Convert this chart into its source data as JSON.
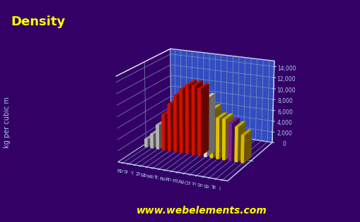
{
  "elements": [
    "Rb",
    "Sr",
    "Y",
    "Zr",
    "Nb",
    "Mo",
    "Tc",
    "Ru",
    "Rh",
    "Pd",
    "Ag",
    "Cd",
    "In",
    "Sn",
    "Sb",
    "Te",
    "I"
  ],
  "densities": [
    1530,
    2630,
    4472,
    6511,
    8570,
    10220,
    11500,
    12370,
    12410,
    12023,
    10490,
    8650,
    7310,
    7310,
    6697,
    6240,
    4940
  ],
  "bar_colors": [
    "#cccccc",
    "#cccccc",
    "#cccccc",
    "#ee1100",
    "#ee1100",
    "#ee1100",
    "#ee1100",
    "#ee1100",
    "#ee1100",
    "#ee1100",
    "#ffffff",
    "#ffdd00",
    "#ffdd00",
    "#ffdd00",
    "#9922bb",
    "#ffdd00",
    "#ffcc00"
  ],
  "title": "Density",
  "ylabel": "kg per cubic m",
  "yticks": [
    0,
    2000,
    4000,
    6000,
    8000,
    10000,
    12000,
    14000
  ],
  "ytick_labels": [
    "0",
    "2,000",
    "4,000",
    "6,000",
    "8,000",
    "10,000",
    "12,000",
    "14,000"
  ],
  "bg_color": "#330066",
  "title_color": "#ffff00",
  "axis_color": "#aaccee",
  "grid_color": "#7799bb",
  "floor_color": "#3355cc",
  "website": "www.webelements.com",
  "website_color": "#ffff00",
  "elev": 18,
  "azim": -65,
  "bar_width": 0.5,
  "bar_depth": 0.5
}
